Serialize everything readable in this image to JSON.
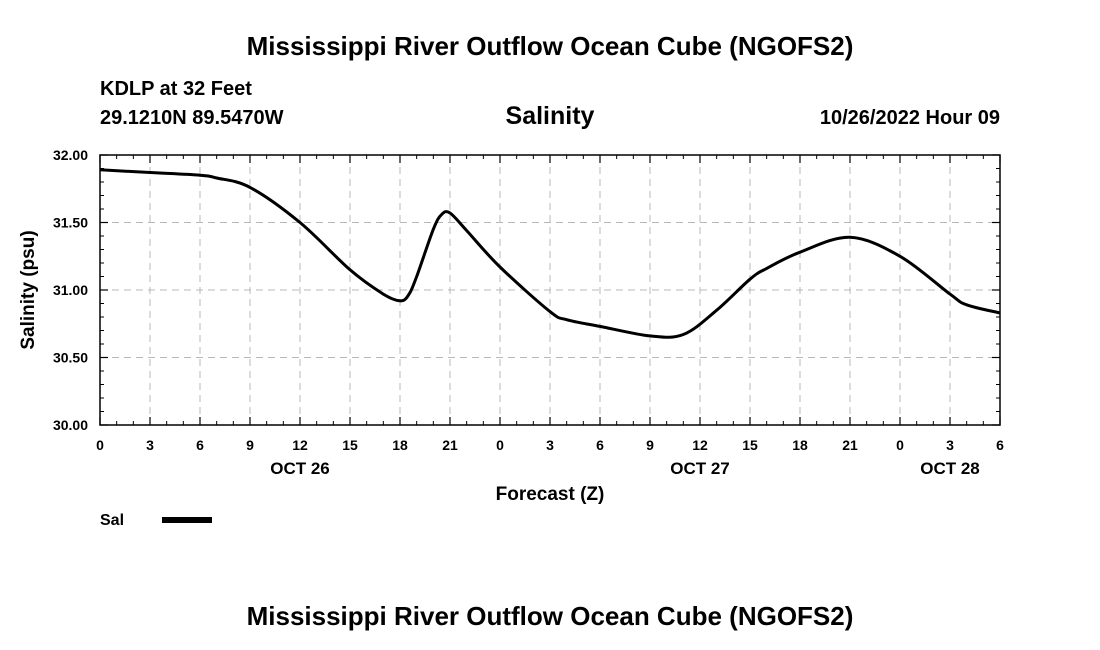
{
  "header": {
    "title": "Mississippi River Outflow Ocean Cube (NGOFS2)",
    "station": "KDLP at 32 Feet",
    "coords": "29.1210N  89.5470W",
    "datetime": "10/26/2022 Hour 09"
  },
  "footer": {
    "title": "Mississippi River Outflow Ocean Cube (NGOFS2)"
  },
  "chart_data": {
    "type": "line",
    "title": "Salinity",
    "xlabel": "Forecast (Z)",
    "ylabel": "Salinity (psu)",
    "ylim": [
      30.0,
      32.0
    ],
    "xlim": [
      0,
      54
    ],
    "y_ticks": [
      "30.00",
      "30.50",
      "31.00",
      "31.50",
      "32.00"
    ],
    "x_tick_labels": [
      "0",
      "3",
      "6",
      "9",
      "12",
      "15",
      "18",
      "21",
      "0",
      "3",
      "6",
      "9",
      "12",
      "15",
      "18",
      "21",
      "0",
      "3",
      "6"
    ],
    "day_labels": [
      {
        "label": "OCT 26",
        "hour": 12
      },
      {
        "label": "OCT 27",
        "hour": 36
      },
      {
        "label": "OCT 28",
        "hour": 51
      }
    ],
    "grid": true,
    "legend": "bottom-left",
    "series": [
      {
        "name": "Sal",
        "color": "#000000",
        "x": [
          0,
          3,
          6,
          7,
          9,
          12,
          15,
          17,
          18,
          18.5,
          19,
          20,
          20.5,
          21,
          22,
          24,
          27,
          28,
          30,
          33,
          35,
          37,
          39,
          40,
          42,
          45,
          48,
          51,
          52,
          54
        ],
        "y": [
          31.89,
          31.87,
          31.85,
          31.83,
          31.76,
          31.5,
          31.15,
          30.97,
          30.92,
          30.96,
          31.1,
          31.45,
          31.56,
          31.57,
          31.44,
          31.17,
          30.84,
          30.78,
          30.73,
          30.66,
          30.67,
          30.85,
          31.08,
          31.16,
          31.28,
          31.39,
          31.25,
          30.97,
          30.89,
          30.83
        ]
      }
    ]
  }
}
